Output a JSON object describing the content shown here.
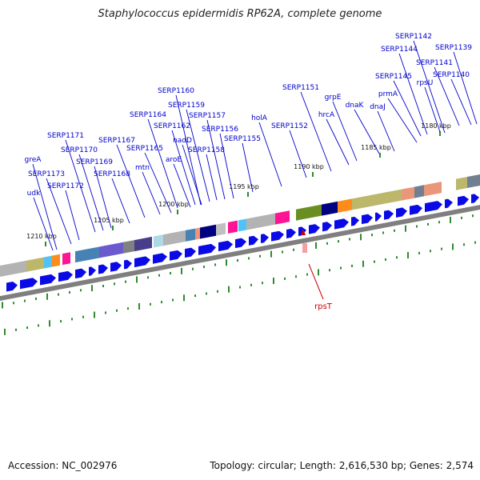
{
  "map": {
    "title": "Staphylococcus epidermidis RP62A, complete genome",
    "accession": "Accession: NC_002976",
    "summary": "Topology: circular; Length: 2,616,530 bp; Genes: 2,574",
    "colors": {
      "background": "#ffffff",
      "backbone": "#7f7f7f",
      "gene_arrow": "#0a0ae6",
      "label": "#0000cc",
      "tick": "#2e8b2e",
      "highlight_marker": "#cc0000"
    },
    "kbp_labels": [
      "1180 kbp",
      "1185 kbp",
      "1190 kbp",
      "1195 kbp",
      "1200 kbp",
      "1205 kbp",
      "1210 kbp"
    ],
    "gene_labels": [
      "SERP1142",
      "SERP1139",
      "SERP1144",
      "SERP1141",
      "SERP1145",
      "SERP1140",
      "rpsU",
      "SERP1151",
      "prmA",
      "grpE",
      "dnaK",
      "dnaJ",
      "hrcA",
      "SERP1160",
      "SERP1159",
      "holA",
      "SERP1164",
      "SERP1157",
      "SERP1162",
      "SERP1152",
      "SERP1156",
      "SERP1171",
      "SERP1167",
      "nadD",
      "SERP1155",
      "SERP1165",
      "SERP1170",
      "SERP1158",
      "greA",
      "aroE",
      "SERP1169",
      "mtn",
      "SERP1173",
      "SERP1168",
      "SERP1172",
      "udk"
    ],
    "highlight_label": "rpsT"
  }
}
